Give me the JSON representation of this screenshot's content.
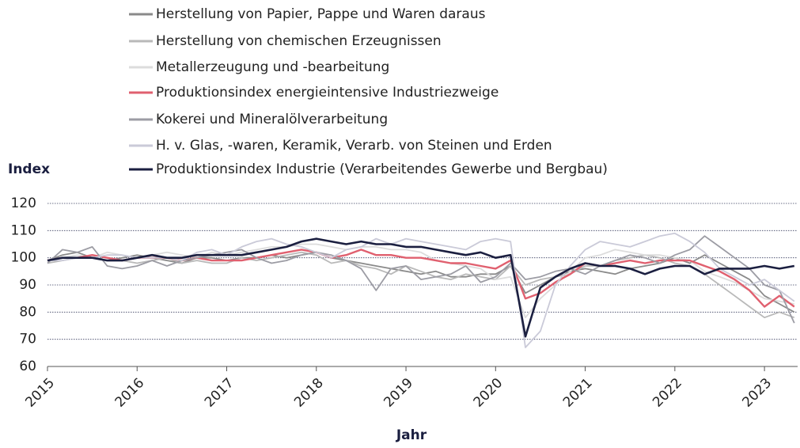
{
  "chart_data": {
    "type": "line",
    "xlabel": "Jahr",
    "ylabel": "Index",
    "x": [
      2015,
      2015.167,
      2015.333,
      2015.5,
      2015.667,
      2015.833,
      2016,
      2016.167,
      2016.333,
      2016.5,
      2016.667,
      2016.833,
      2017,
      2017.167,
      2017.333,
      2017.5,
      2017.667,
      2017.833,
      2018,
      2018.167,
      2018.333,
      2018.5,
      2018.667,
      2018.833,
      2019,
      2019.167,
      2019.333,
      2019.5,
      2019.667,
      2019.833,
      2020,
      2020.167,
      2020.333,
      2020.5,
      2020.667,
      2020.833,
      2021,
      2021.167,
      2021.333,
      2021.5,
      2021.667,
      2021.833,
      2022,
      2022.167,
      2022.333,
      2022.5,
      2022.667,
      2022.833,
      2023,
      2023.167,
      2023.333
    ],
    "xlim": [
      2015,
      2023.37
    ],
    "xticks": [
      2015,
      2016,
      2017,
      2018,
      2019,
      2020,
      2021,
      2022,
      2023
    ],
    "ylim": [
      60,
      120
    ],
    "yticks": [
      60,
      70,
      80,
      90,
      100,
      110,
      120
    ],
    "grid": true,
    "series": [
      {
        "name": "Herstellung von Papier, Pappe und Waren daraus",
        "color": "#8a8a8a",
        "values": [
          99,
          101,
          102,
          100,
          99,
          100,
          101,
          100,
          99,
          98,
          100,
          100,
          99,
          100,
          100,
          101,
          100,
          101,
          102,
          100,
          99,
          98,
          97,
          96,
          95,
          94,
          95,
          93,
          93,
          94,
          94,
          97,
          87,
          90,
          93,
          95,
          96,
          95,
          94,
          96,
          97,
          98,
          100,
          98,
          101,
          98,
          95,
          92,
          86,
          83,
          80
        ]
      },
      {
        "name": "Herstellung von chemischen Erzeugnissen",
        "color": "#b9b9b9",
        "values": [
          98,
          99,
          100,
          101,
          100,
          99,
          98,
          99,
          100,
          98,
          99,
          98,
          98,
          100,
          99,
          100,
          101,
          102,
          101,
          98,
          99,
          97,
          96,
          94,
          97,
          95,
          93,
          92,
          94,
          93,
          92,
          97,
          90,
          92,
          93,
          94,
          97,
          97,
          99,
          100,
          101,
          100,
          98,
          97,
          94,
          90,
          86,
          82,
          78,
          80,
          78
        ]
      },
      {
        "name": "Metallerzeugung und -bearbeitung",
        "color": "#dcdcdc",
        "values": [
          99,
          100,
          101,
          100,
          102,
          101,
          100,
          101,
          102,
          101,
          100,
          102,
          101,
          102,
          103,
          104,
          104,
          105,
          105,
          104,
          103,
          104,
          104,
          103,
          103,
          102,
          99,
          98,
          97,
          96,
          92,
          93,
          78,
          85,
          90,
          95,
          100,
          101,
          103,
          102,
          101,
          101,
          100,
          99,
          95,
          93,
          91,
          88,
          85,
          84,
          83
        ]
      },
      {
        "name": "Produktionsindex energieintensive Industriezweige",
        "color": "#e0606f",
        "values": [
          99,
          100,
          100,
          101,
          100,
          99,
          100,
          100,
          100,
          99,
          100,
          99,
          99,
          99,
          100,
          101,
          102,
          103,
          102,
          100,
          101,
          103,
          101,
          101,
          100,
          100,
          99,
          98,
          98,
          97,
          96,
          99,
          85,
          87,
          91,
          94,
          98,
          97,
          98,
          99,
          98,
          99,
          99,
          99,
          97,
          95,
          92,
          88,
          82,
          86,
          82
        ]
      },
      {
        "name": "Kokerei und Mineralölverarbeitung",
        "color": "#9c9ca4",
        "values": [
          98,
          103,
          102,
          104,
          97,
          96,
          97,
          99,
          97,
          99,
          100,
          101,
          102,
          103,
          100,
          98,
          99,
          101,
          102,
          101,
          99,
          96,
          88,
          96,
          97,
          92,
          93,
          94,
          97,
          91,
          93,
          98,
          92,
          93,
          95,
          96,
          94,
          97,
          99,
          101,
          100,
          98,
          101,
          103,
          108,
          104,
          100,
          96,
          90,
          88,
          76
        ]
      },
      {
        "name": "H. v. Glas, -waren, Keramik, Verarb. von Steinen und Erden",
        "color": "#cacad8",
        "values": [
          99,
          99,
          100,
          100,
          101,
          101,
          100,
          100,
          100,
          99,
          102,
          103,
          101,
          104,
          106,
          107,
          105,
          104,
          102,
          100,
          103,
          104,
          107,
          105,
          107,
          106,
          105,
          104,
          103,
          106,
          107,
          106,
          67,
          73,
          90,
          97,
          103,
          106,
          105,
          104,
          106,
          108,
          109,
          106,
          102,
          96,
          93,
          90,
          92,
          88,
          84
        ]
      },
      {
        "name": "Produktionsindex Industrie (Verarbeitendes Gewerbe und Bergbau)",
        "color": "#1b1f40",
        "values": [
          99,
          100,
          100,
          100,
          99,
          99,
          100,
          101,
          100,
          100,
          101,
          101,
          101,
          101,
          102,
          103,
          104,
          106,
          107,
          106,
          105,
          106,
          105,
          105,
          104,
          104,
          103,
          102,
          101,
          102,
          100,
          101,
          71,
          89,
          93,
          96,
          98,
          97,
          97,
          96,
          94,
          96,
          97,
          97,
          94,
          96,
          96,
          96,
          97,
          96,
          97
        ]
      }
    ]
  }
}
